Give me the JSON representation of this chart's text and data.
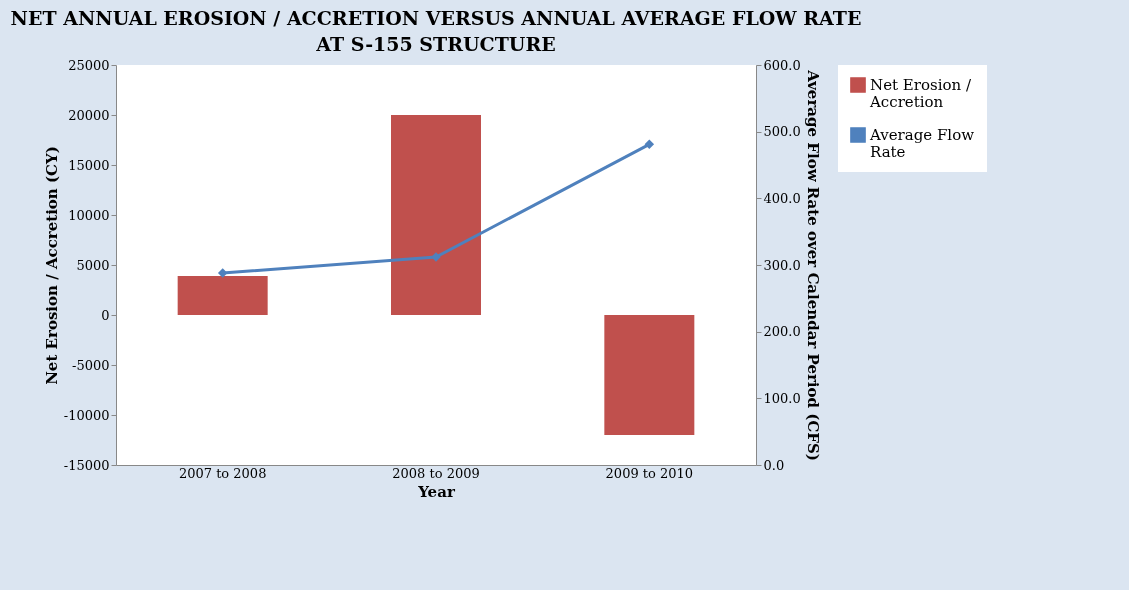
{
  "chart_data": {
    "type": "bar",
    "title": "NET ANNUAL EROSION / ACCRETION VERSUS ANNUAL AVERAGE FLOW RATE AT S-155 STRUCTURE",
    "xlabel": "Year",
    "ylabel": "Net Erosion / Accretion (CY)",
    "y2label": "Average Flow Rate over Calendar Period (CFS)",
    "categories": [
      "2007 to 2008",
      "2008 to 2009",
      "2009 to 2010"
    ],
    "series": [
      {
        "name": "Net Erosion / Accretion",
        "color": "#c0504d",
        "values": [
          3900,
          20000,
          -12000
        ]
      },
      {
        "name": "Average Flow Rate",
        "type": "line",
        "axis": "y2",
        "color": "#4f81bd",
        "marker": "diamond",
        "values": [
          288,
          312,
          481
        ]
      }
    ],
    "ylim": [
      -15000,
      25000
    ],
    "yticks": [
      -15000,
      -10000,
      -5000,
      0,
      5000,
      10000,
      15000,
      20000,
      25000
    ],
    "y2lim": [
      0,
      600
    ],
    "y2ticks": [
      {
        "value": 0,
        "label": "0.0"
      },
      {
        "value": 100,
        "label": "100.0"
      },
      {
        "value": 200,
        "label": "200.0"
      },
      {
        "value": 300,
        "label": "300.0"
      },
      {
        "value": 400,
        "label": "400.0"
      },
      {
        "value": 500,
        "label": "500.0"
      },
      {
        "value": 600,
        "label": "600.0"
      }
    ],
    "grid": false,
    "legend": "right"
  }
}
